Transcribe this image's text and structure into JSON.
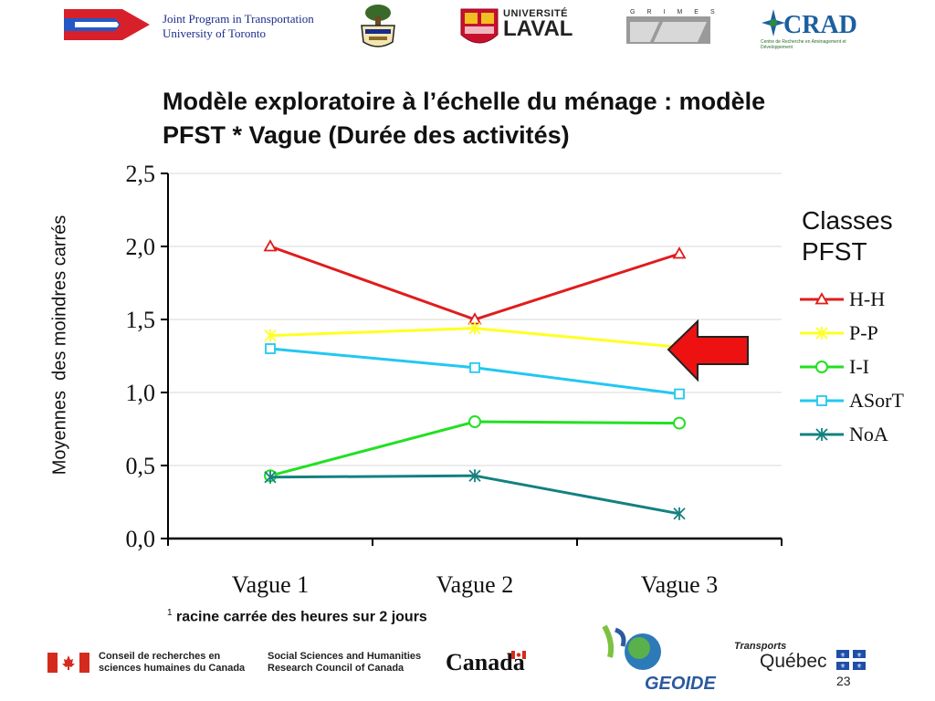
{
  "header": {
    "jpt_line1": "Joint Program in Transportation",
    "jpt_line2": "University of Toronto",
    "laval_line1": "UNIVERSITÉ",
    "laval_line2": "LAVAL",
    "grimes": "GRIMES",
    "crad": "CRAD",
    "crad_sub": "Centre de Recherche en Aménagement et Développement"
  },
  "chart_data": {
    "type": "line",
    "title": "Modèle exploratoire à l’échelle du ménage : modèle PFST * Vague (Durée des activités)",
    "ylabel": "Moyennes  des moindres carrés",
    "xlabel": "",
    "categories": [
      "Vague 1",
      "Vague 2",
      "Vague 3"
    ],
    "ylim": [
      0.0,
      2.5
    ],
    "yticks": [
      "0,0",
      "0,5",
      "1,0",
      "1,5",
      "2,0",
      "2,5"
    ],
    "yticks_values": [
      0.0,
      0.5,
      1.0,
      1.5,
      2.0,
      2.5
    ],
    "grid": true,
    "legend_title": "Classes PFST",
    "legend_title_line1": "Classes",
    "legend_title_line2": "PFST",
    "legend_position": "right",
    "series": [
      {
        "name": "H-H",
        "color": "#e01c1c",
        "marker": "triangle",
        "values": [
          2.0,
          1.5,
          1.95
        ]
      },
      {
        "name": "P-P",
        "color": "#ffff22",
        "marker": "star",
        "values": [
          1.39,
          1.44,
          1.31
        ]
      },
      {
        "name": "I-I",
        "color": "#22e022",
        "marker": "circle",
        "values": [
          0.43,
          0.8,
          0.79
        ]
      },
      {
        "name": "ASorT",
        "color": "#22c8f0",
        "marker": "square",
        "values": [
          1.3,
          1.17,
          0.99
        ]
      },
      {
        "name": "NoA",
        "color": "#148080",
        "marker": "asterisk",
        "values": [
          0.42,
          0.43,
          0.17
        ]
      }
    ]
  },
  "footnote": {
    "sup": "1",
    "text": " racine carrée des heures sur 2 jours"
  },
  "footer": {
    "crsh_fr_1": "Conseil de recherches en",
    "crsh_fr_2": "sciences humaines du Canada",
    "crsh_en_1": "Social Sciences and Humanities",
    "crsh_en_2": "Research Council of Canada",
    "canada": "Canada",
    "geoide": "GEOIDE",
    "tq_1": "Transports",
    "tq_2": "Québec",
    "page": "23"
  }
}
